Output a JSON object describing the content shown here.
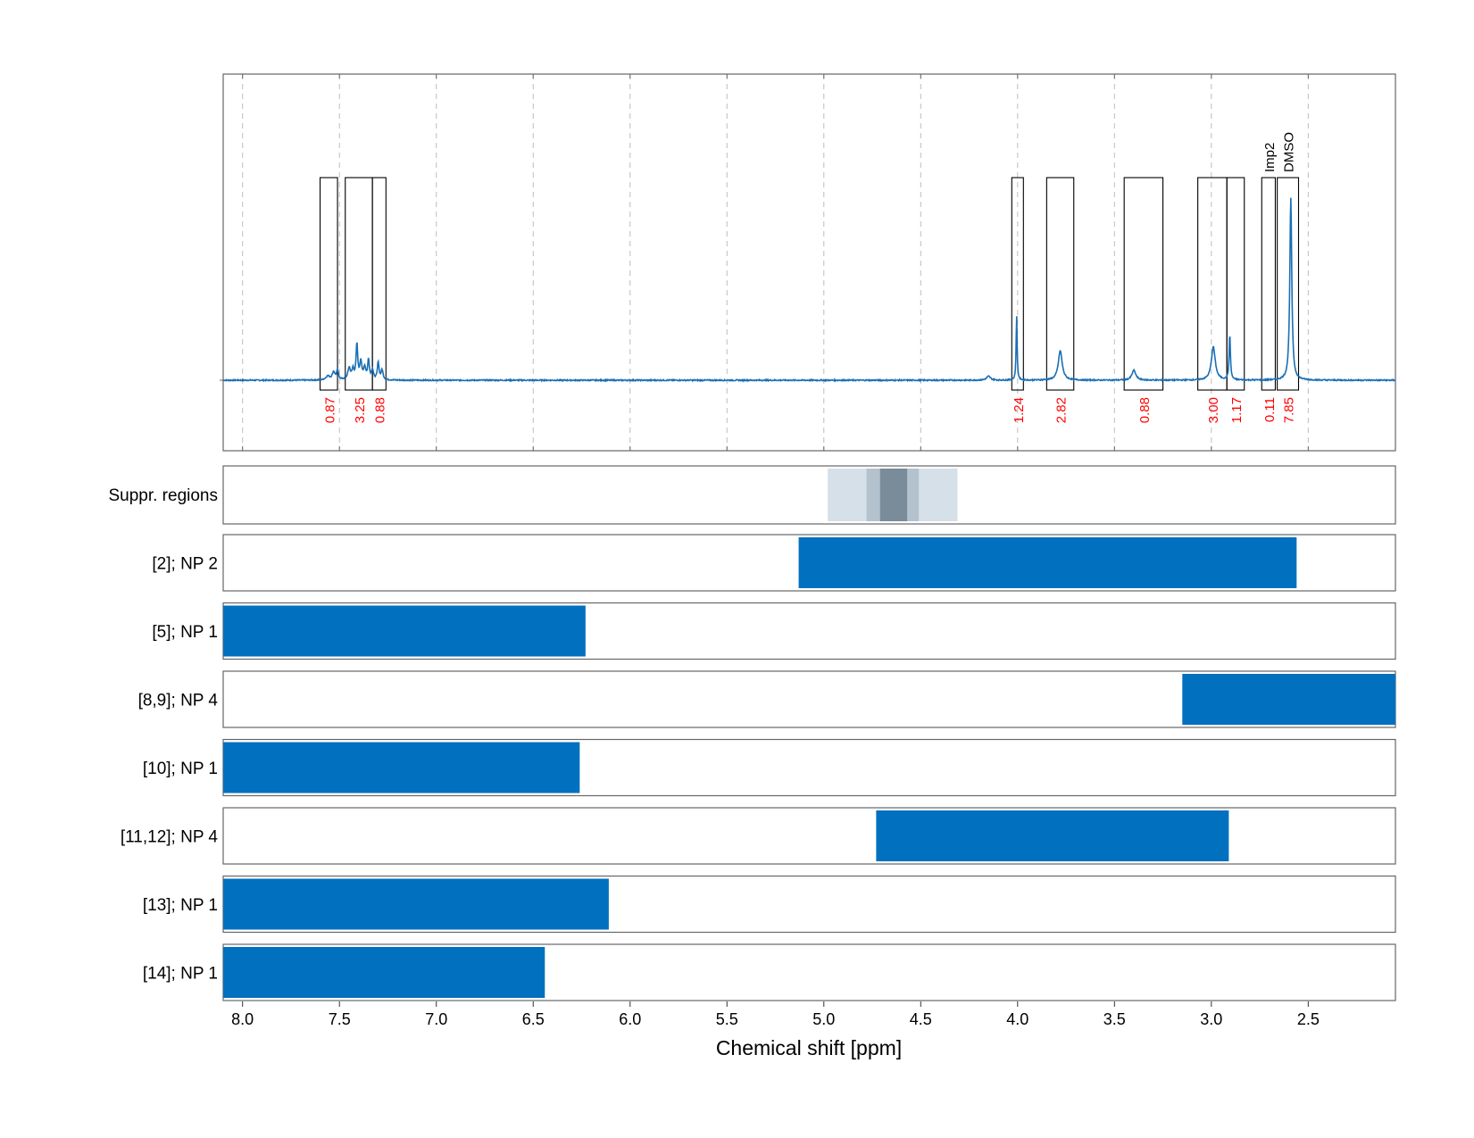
{
  "chart_data": {
    "type": "line",
    "xlabel": "Chemical shift [ppm]",
    "xlim": [
      8.1,
      2.05
    ],
    "x_reversed": true,
    "x_ticks": [
      "8.0",
      "7.5",
      "7.0",
      "6.5",
      "6.0",
      "5.5",
      "5.0",
      "4.5",
      "4.0",
      "3.5",
      "3.0",
      "2.5"
    ],
    "colors": {
      "spectrum": "#1a6fb5",
      "bar": "#0070bf",
      "integral_label": "#ff0000",
      "suppr_light": "#d6e0e8",
      "suppr_mid": "#b4c2cd",
      "suppr_dark": "#7a8b99",
      "frame": "#666666",
      "grid": "#bdbdbd"
    },
    "spectrum": {
      "baseline": 0,
      "peaks": [
        {
          "ppm": 7.56,
          "height": 0.02,
          "width": 0.012
        },
        {
          "ppm": 7.53,
          "height": 0.04,
          "width": 0.008
        },
        {
          "ppm": 7.51,
          "height": 0.045,
          "width": 0.006
        },
        {
          "ppm": 7.45,
          "height": 0.06,
          "width": 0.008
        },
        {
          "ppm": 7.43,
          "height": 0.05,
          "width": 0.006
        },
        {
          "ppm": 7.41,
          "height": 0.18,
          "width": 0.005
        },
        {
          "ppm": 7.39,
          "height": 0.09,
          "width": 0.006
        },
        {
          "ppm": 7.37,
          "height": 0.06,
          "width": 0.007
        },
        {
          "ppm": 7.35,
          "height": 0.1,
          "width": 0.005
        },
        {
          "ppm": 7.33,
          "height": 0.05,
          "width": 0.006
        },
        {
          "ppm": 7.3,
          "height": 0.09,
          "width": 0.005
        },
        {
          "ppm": 7.28,
          "height": 0.05,
          "width": 0.006
        },
        {
          "ppm": 4.15,
          "height": 0.02,
          "width": 0.012
        },
        {
          "ppm": 4.005,
          "height": 0.33,
          "width": 0.003
        },
        {
          "ppm": 3.78,
          "height": 0.15,
          "width": 0.012
        },
        {
          "ppm": 3.4,
          "height": 0.05,
          "width": 0.012
        },
        {
          "ppm": 2.99,
          "height": 0.17,
          "width": 0.012
        },
        {
          "ppm": 2.905,
          "height": 0.23,
          "width": 0.004
        },
        {
          "ppm": 2.59,
          "height": 0.93,
          "width": 0.006
        }
      ],
      "integrals": [
        {
          "from": 7.6,
          "to": 7.51,
          "label": "0.87"
        },
        {
          "from": 7.47,
          "to": 7.33,
          "label": "3.25"
        },
        {
          "from": 7.33,
          "to": 7.26,
          "label": "0.88"
        },
        {
          "from": 4.03,
          "to": 3.97,
          "label": "1.24"
        },
        {
          "from": 3.85,
          "to": 3.71,
          "label": "2.82"
        },
        {
          "from": 3.45,
          "to": 3.25,
          "label": "0.88"
        },
        {
          "from": 3.07,
          "to": 2.92,
          "label": "3.00"
        },
        {
          "from": 2.92,
          "to": 2.83,
          "label": "1.17"
        },
        {
          "from": 2.74,
          "to": 2.67,
          "label": "0.11",
          "annotation": "Imp2"
        },
        {
          "from": 2.66,
          "to": 2.55,
          "label": "7.85",
          "annotation": "DMSO"
        }
      ]
    },
    "suppression_track": {
      "label": "Suppr. regions",
      "bands": [
        {
          "from": 4.98,
          "to": 4.31,
          "level": "light"
        },
        {
          "from": 4.78,
          "to": 4.51,
          "level": "mid"
        },
        {
          "from": 4.71,
          "to": 4.57,
          "level": "dark"
        }
      ]
    },
    "range_tracks": [
      {
        "label": "[2]; NP 2",
        "from": 5.13,
        "to": 2.56
      },
      {
        "label": "[5]; NP 1",
        "from": 8.1,
        "to": 6.23
      },
      {
        "label": "[8,9]; NP 4",
        "from": 3.15,
        "to": 2.05
      },
      {
        "label": "[10]; NP 1",
        "from": 8.1,
        "to": 6.26
      },
      {
        "label": "[11,12]; NP 4",
        "from": 4.73,
        "to": 2.91
      },
      {
        "label": "[13]; NP 1",
        "from": 8.1,
        "to": 6.11
      },
      {
        "label": "[14]; NP 1",
        "from": 8.1,
        "to": 6.44
      }
    ]
  }
}
